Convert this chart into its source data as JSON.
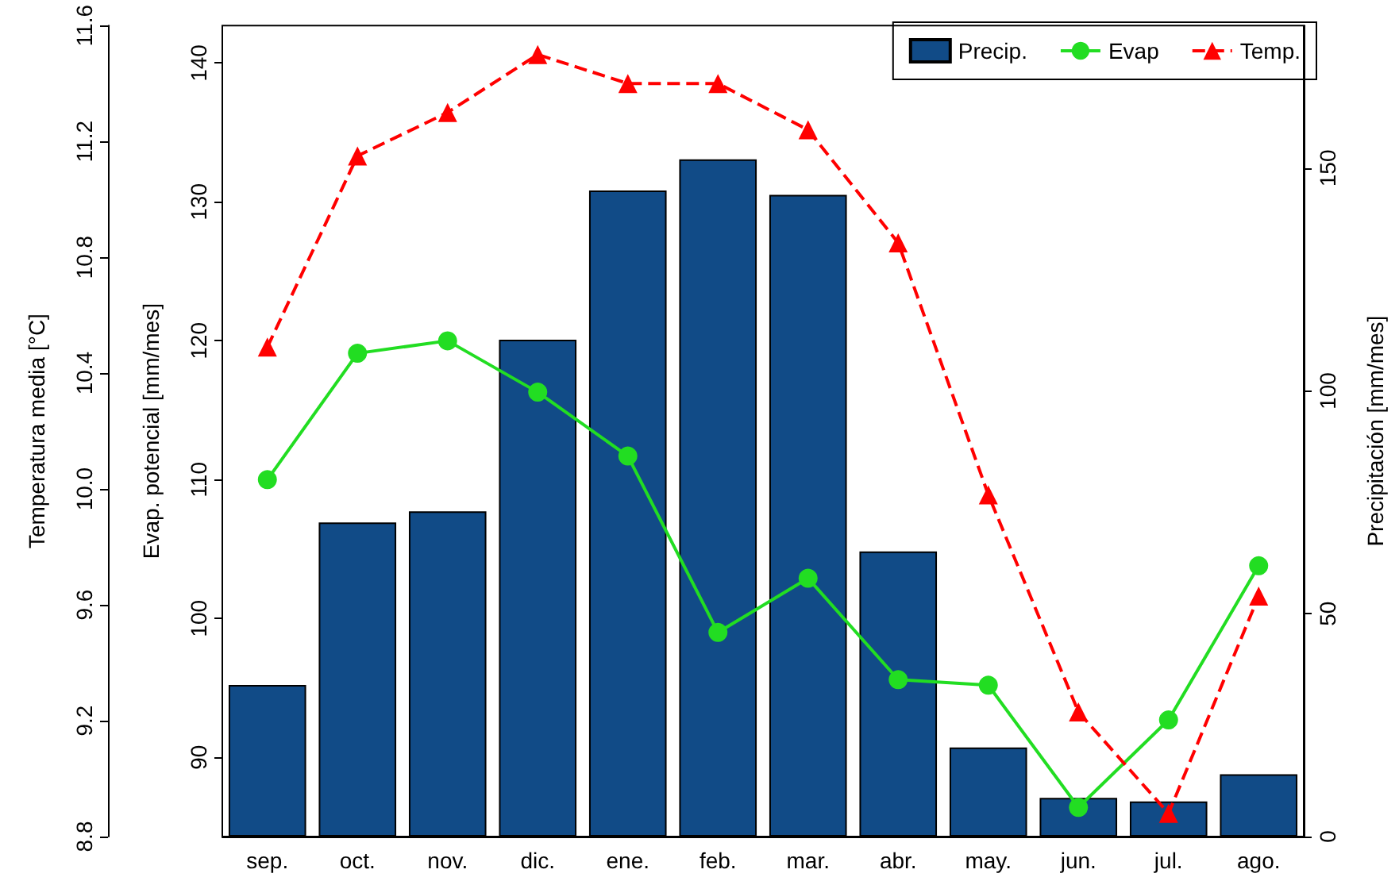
{
  "chart_data": {
    "type": "bar",
    "categories": [
      "sep.",
      "oct.",
      "nov.",
      "dic.",
      "ene.",
      "feb.",
      "mar.",
      "abr.",
      "may.",
      "jun.",
      "jul.",
      "ago."
    ],
    "series": [
      {
        "name": "Precip.",
        "axis": "y2",
        "color": "#114b87",
        "values": [
          34,
          70.5,
          73,
          111.5,
          145,
          152,
          144,
          64,
          20,
          8.7,
          7.9,
          14
        ]
      },
      {
        "name": "Evap",
        "type": "line",
        "color": "#22dd22",
        "marker": "circle",
        "line_style": "solid",
        "values": [
          110,
          119.1,
          120,
          116.3,
          111.7,
          99,
          102.9,
          95.6,
          95.2,
          86.4,
          92.7,
          103.8
        ]
      },
      {
        "name": "Temp.",
        "type": "line",
        "axis": "y3",
        "color": "#ff0000",
        "marker": "triangle",
        "line_style": "dashed",
        "values": [
          10.49,
          11.15,
          11.3,
          11.5,
          11.4,
          11.4,
          11.24,
          10.85,
          9.98,
          9.23,
          8.88,
          9.63
        ]
      }
    ],
    "ylabel": "Evap. potencial [mm/mes]",
    "ylim": [
      84.3,
      142.7
    ],
    "yticks": [
      90,
      100,
      110,
      120,
      130,
      140
    ],
    "y2label": "Precipitación [mm/mes]",
    "y2lim": [
      0,
      182
    ],
    "y2ticks": [
      0,
      50,
      100,
      150
    ],
    "y3label": "Temperatura media [°C]",
    "y3lim": [
      8.8,
      11.6
    ],
    "y3ticks": [
      8.8,
      9.2,
      9.6,
      {
        "value": 10,
        "label": "10.0"
      },
      10.4,
      10.8,
      11.2,
      11.6
    ],
    "grid": false,
    "legend": "top right"
  }
}
